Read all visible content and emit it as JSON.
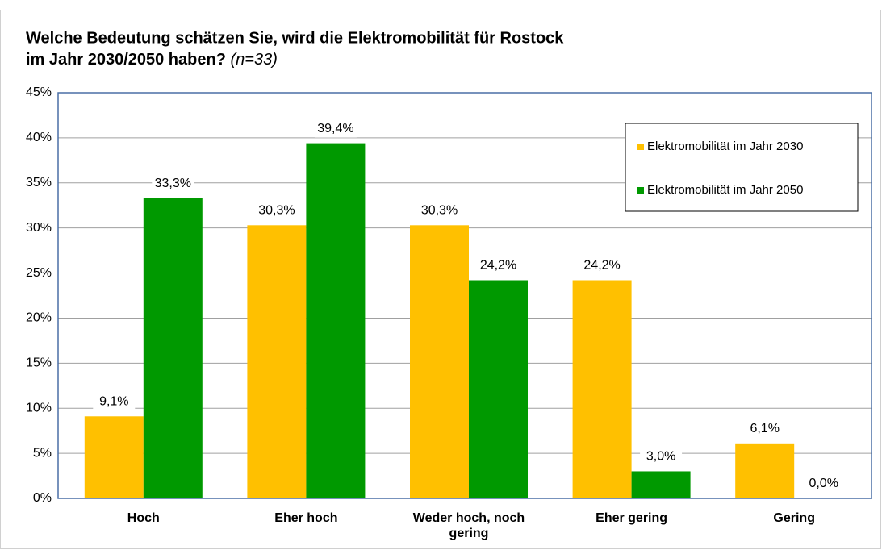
{
  "chart_data": {
    "type": "bar",
    "title": [
      "Welche Bedeutung schätzen Sie, wird die Elektromobilität für Rostock",
      "im Jahr 2030/2050 haben?"
    ],
    "note": "(n=33)",
    "categories": [
      "Hoch",
      "Eher hoch",
      "Weder hoch, noch gering",
      "Eher gering",
      "Gering"
    ],
    "series": [
      {
        "name": "Elektromobilität im Jahr 2030",
        "color": "#FFC000",
        "values": [
          9.1,
          30.3,
          30.3,
          24.2,
          6.1
        ],
        "value_labels": [
          "9,1%",
          "30,3%",
          "30,3%",
          "24,2%",
          "6,1%"
        ]
      },
      {
        "name": "Elektromobilität im Jahr 2050",
        "color": "#009900",
        "values": [
          33.3,
          39.4,
          24.2,
          3.0,
          0.0
        ],
        "value_labels": [
          "33,3%",
          "39,4%",
          "24,2%",
          "3,0%",
          "0,0%"
        ]
      }
    ],
    "ylim": [
      0,
      45
    ],
    "yticks": [
      {
        "value": 0,
        "label": "0%"
      },
      {
        "value": 5,
        "label": "5%"
      },
      {
        "value": 10,
        "label": "10%"
      },
      {
        "value": 15,
        "label": "15%"
      },
      {
        "value": 20,
        "label": "20%"
      },
      {
        "value": 25,
        "label": "25%"
      },
      {
        "value": 30,
        "label": "30%"
      },
      {
        "value": 35,
        "label": "35%"
      },
      {
        "value": 40,
        "label": "40%"
      },
      {
        "value": 45,
        "label": "45%"
      }
    ],
    "grid": true,
    "legend": "upper right"
  }
}
